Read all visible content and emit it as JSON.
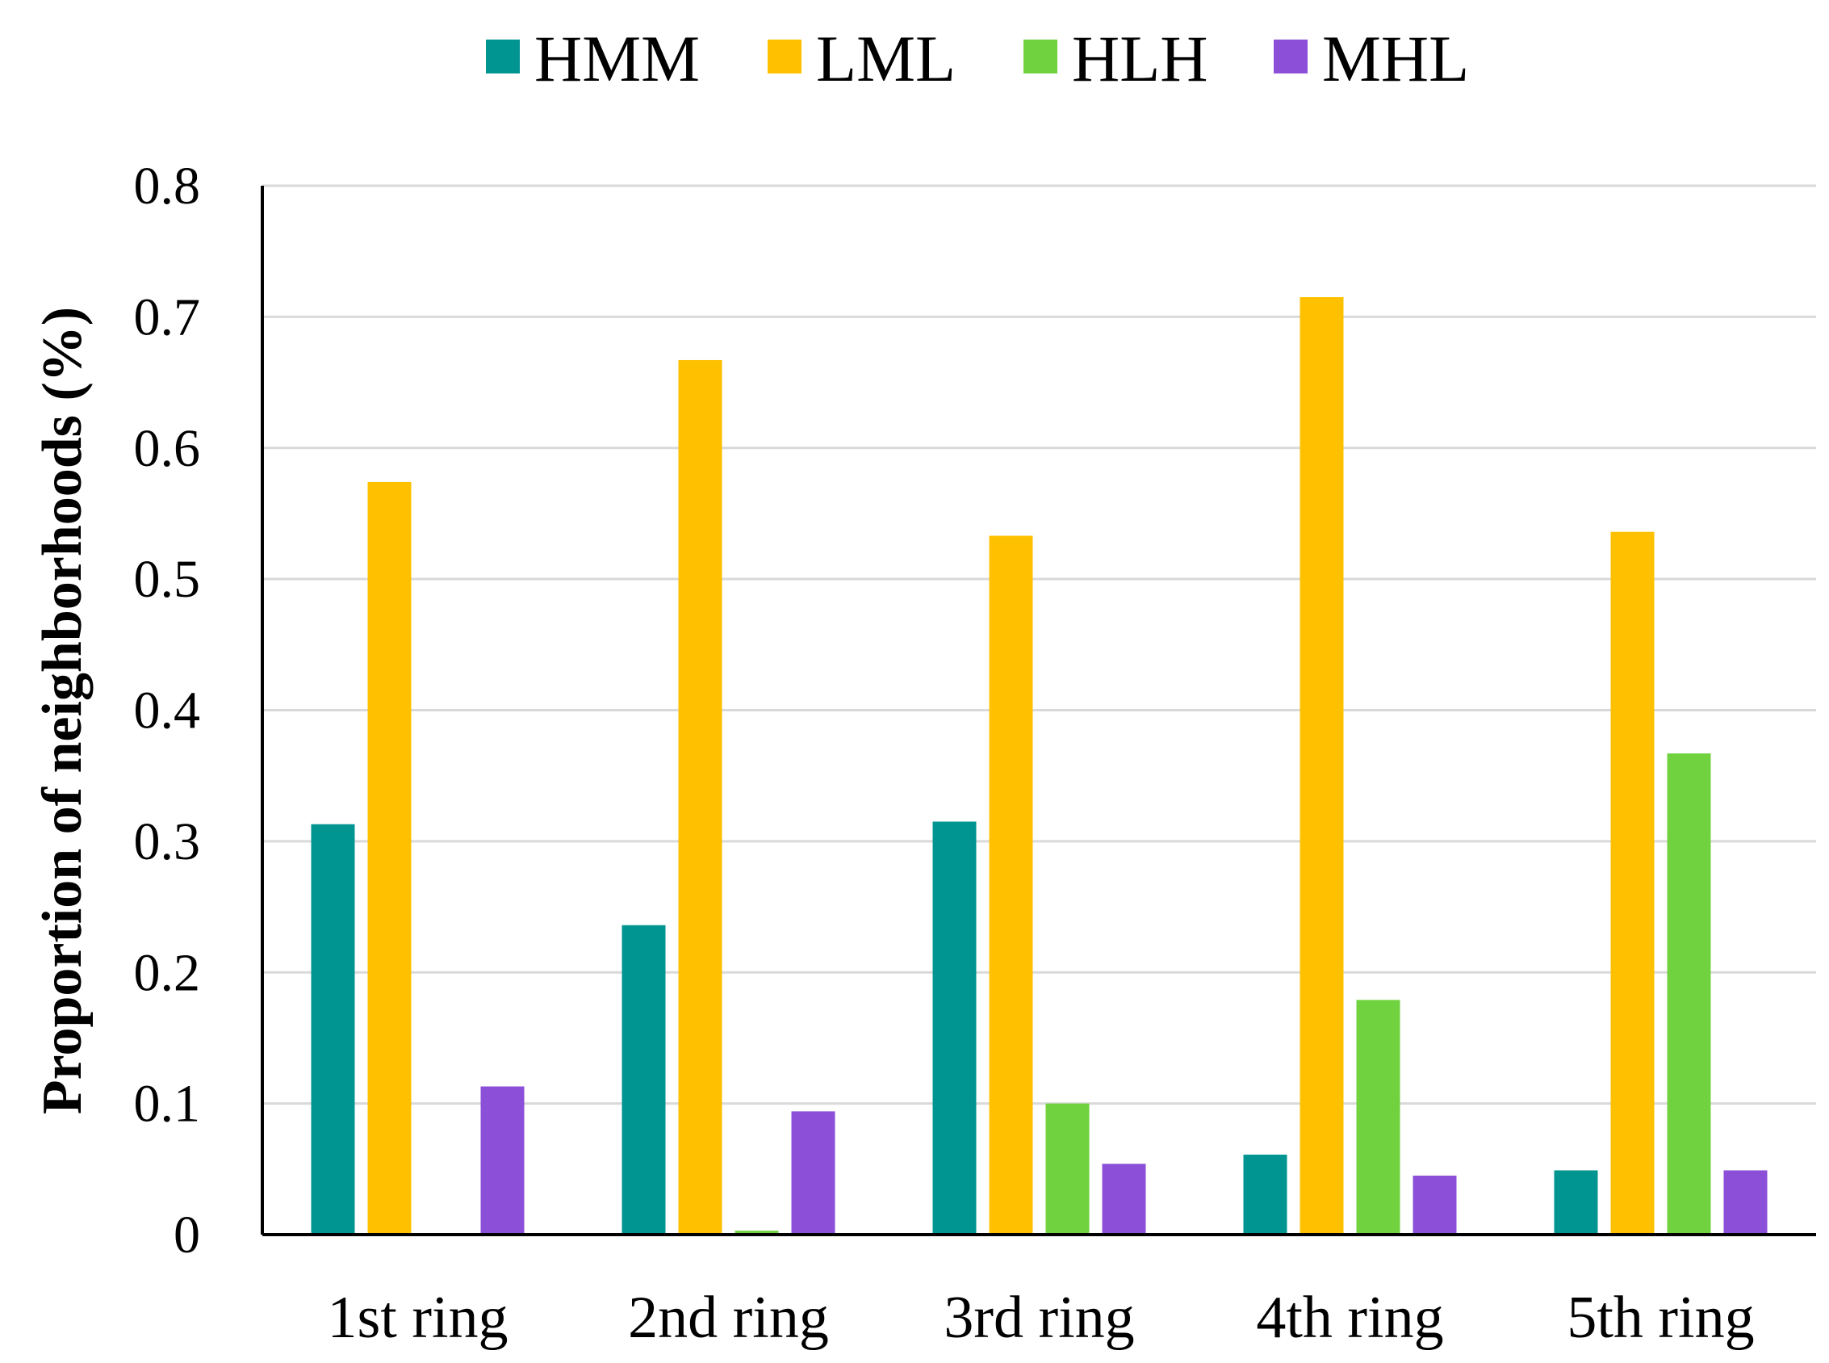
{
  "chart_data": {
    "type": "bar",
    "categories": [
      "1st ring",
      "2nd ring",
      "3rd ring",
      "4th ring",
      "5th ring"
    ],
    "series": [
      {
        "name": "HMM",
        "color": "#009591",
        "values": [
          0.313,
          0.236,
          0.315,
          0.061,
          0.049
        ]
      },
      {
        "name": "LML",
        "color": "#ffc000",
        "values": [
          0.574,
          0.667,
          0.533,
          0.715,
          0.536
        ]
      },
      {
        "name": "HLH",
        "color": "#6fd23e",
        "values": [
          0.0,
          0.003,
          0.1,
          0.179,
          0.367
        ]
      },
      {
        "name": "MHL",
        "color": "#8b4fd8",
        "values": [
          0.113,
          0.094,
          0.054,
          0.045,
          0.049
        ]
      }
    ],
    "ylabel": "Proportion of neighborhoods (%)",
    "xlabel": "",
    "ylim": [
      0,
      0.8
    ],
    "yticks": [
      "0",
      "0.1",
      "0.2",
      "0.3",
      "0.4",
      "0.5",
      "0.6",
      "0.7",
      "0.8"
    ],
    "grid": true,
    "legend_position": "top-center"
  }
}
